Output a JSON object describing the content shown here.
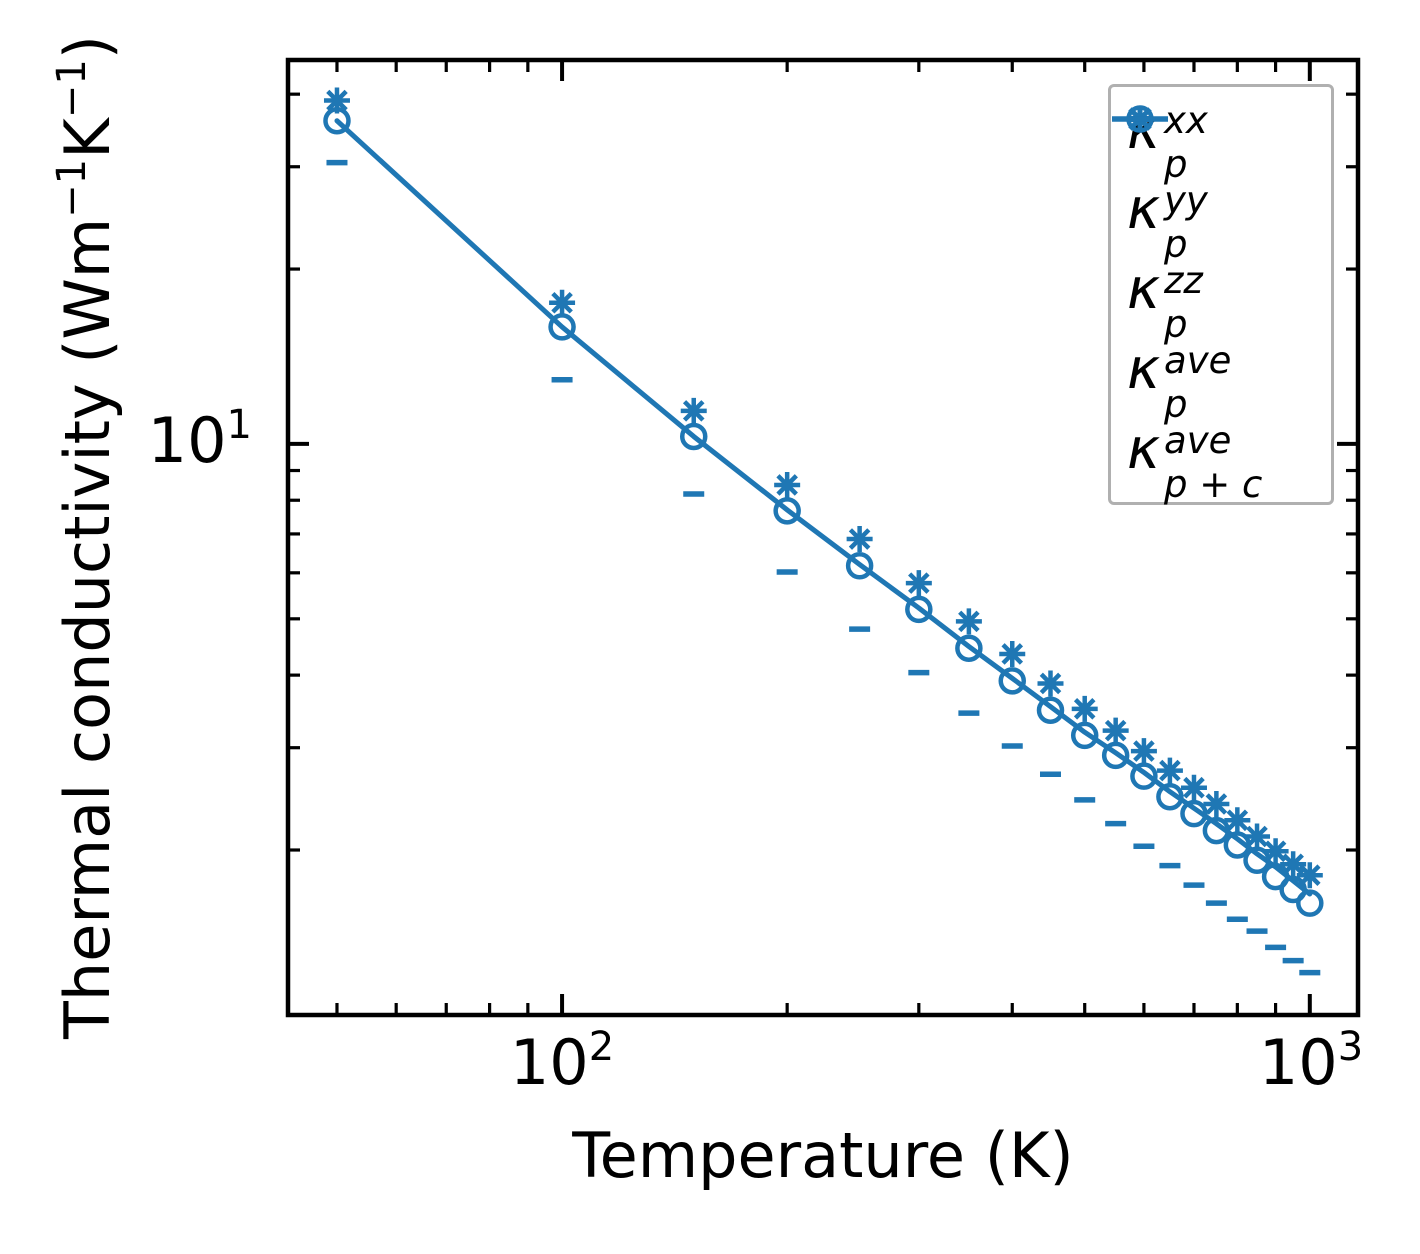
{
  "chart_data": {
    "type": "scatter",
    "title": "",
    "xlabel": "Temperature (K)",
    "ylabel": "Thermal conductivity (Wm−1K−1)",
    "ylabel_parts": {
      "pre": "Thermal conductivity (Wm",
      "sup1": "−1",
      "mid": "K",
      "sup2": "−1",
      "post": ")"
    },
    "x_scale": "log",
    "y_scale": "log",
    "xlim": [
      43,
      1160
    ],
    "ylim": [
      1.04,
      45.8
    ],
    "grid": false,
    "legend_position": "upper right",
    "x_major_ticks": [
      100,
      1000
    ],
    "x_minor_ticks": [
      50,
      60,
      70,
      80,
      90,
      200,
      300,
      400,
      500,
      600,
      700,
      800,
      900
    ],
    "y_major_ticks": [
      10
    ],
    "y_minor_ticks": [
      2,
      3,
      4,
      5,
      6,
      7,
      8,
      9,
      20,
      30,
      40
    ],
    "x_tick_labels": [
      {
        "base": "10",
        "exp": "2"
      },
      {
        "base": "10",
        "exp": "3"
      }
    ],
    "y_tick_labels": [
      {
        "base": "10",
        "exp": "1"
      }
    ],
    "color": "#1f77b4",
    "temperatures": [
      50,
      100,
      150,
      200,
      250,
      300,
      350,
      400,
      450,
      500,
      550,
      600,
      650,
      700,
      750,
      800,
      850,
      900,
      950,
      1000
    ],
    "series": [
      {
        "name": "kappa_p_xx",
        "marker": "plus",
        "legend": {
          "symbol": "κ",
          "sup": "xx",
          "sub": "p"
        },
        "values": [
          39.0,
          17.5,
          11.4,
          8.5,
          6.86,
          5.76,
          4.95,
          4.35,
          3.87,
          3.5,
          3.21,
          2.96,
          2.74,
          2.56,
          2.4,
          2.25,
          2.11,
          1.99,
          1.89,
          1.81
        ]
      },
      {
        "name": "kappa_p_yy",
        "marker": "cross",
        "legend": {
          "symbol": "κ",
          "sup": "yy",
          "sub": "p"
        },
        "values": [
          39.0,
          17.5,
          11.4,
          8.5,
          6.86,
          5.76,
          4.95,
          4.35,
          3.87,
          3.5,
          3.21,
          2.96,
          2.74,
          2.56,
          2.4,
          2.25,
          2.11,
          1.99,
          1.89,
          1.81
        ]
      },
      {
        "name": "kappa_p_zz",
        "marker": "dash",
        "legend": {
          "symbol": "κ",
          "sup": "zz",
          "sub": "p"
        },
        "values": [
          30.5,
          12.9,
          8.2,
          6.02,
          4.8,
          4.04,
          3.44,
          3.02,
          2.7,
          2.44,
          2.22,
          2.03,
          1.88,
          1.74,
          1.62,
          1.52,
          1.45,
          1.36,
          1.29,
          1.23
        ]
      },
      {
        "name": "kappa_p_ave",
        "marker": "circle",
        "legend": {
          "symbol": "κ",
          "sup": "ave",
          "sub": "p"
        },
        "values": [
          36.0,
          15.9,
          10.3,
          7.67,
          6.17,
          5.19,
          4.45,
          3.91,
          3.48,
          3.15,
          2.91,
          2.68,
          2.47,
          2.31,
          2.16,
          2.04,
          1.92,
          1.8,
          1.71,
          1.62
        ]
      },
      {
        "name": "kappa_p_plus_c_ave",
        "marker": "line",
        "legend": {
          "symbol": "κ",
          "sup": "ave",
          "sub": "p + c"
        },
        "values": [
          36.0,
          15.9,
          10.3,
          7.7,
          6.2,
          5.22,
          4.48,
          3.95,
          3.53,
          3.19,
          2.94,
          2.72,
          2.52,
          2.36,
          2.22,
          2.09,
          1.97,
          1.87,
          1.77,
          1.68
        ]
      }
    ]
  }
}
